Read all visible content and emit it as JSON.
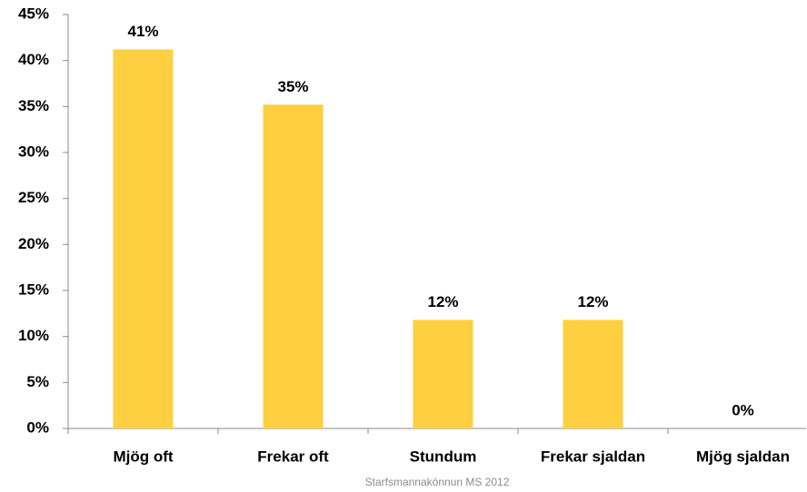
{
  "chart_data": {
    "type": "bar",
    "categories": [
      "Mjög oft",
      "Frekar oft",
      "Stundum",
      "Frekar sjaldan",
      "Mjög sjaldan"
    ],
    "values": [
      41.2,
      35.2,
      11.8,
      11.8,
      0
    ],
    "value_labels": [
      "41%",
      "35%",
      "12%",
      "12%",
      "0%"
    ],
    "color": "#fdcf41",
    "ylim": [
      0,
      45
    ],
    "yticks": [
      {
        "value": 0,
        "label": "0%"
      },
      {
        "value": 5,
        "label": "5%"
      },
      {
        "value": 10,
        "label": "10%"
      },
      {
        "value": 15,
        "label": "15%"
      },
      {
        "value": 20,
        "label": "20%"
      },
      {
        "value": 25,
        "label": "25%"
      },
      {
        "value": 30,
        "label": "30%"
      },
      {
        "value": 35,
        "label": "35%"
      },
      {
        "value": 40,
        "label": "40%"
      },
      {
        "value": 45,
        "label": "45%"
      }
    ],
    "source": "Starfsmannakönnun MS 2012"
  }
}
